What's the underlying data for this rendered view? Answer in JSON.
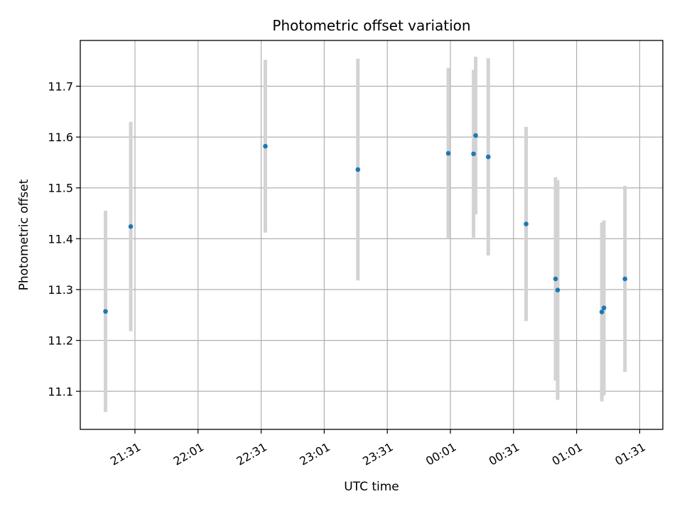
{
  "chart_data": {
    "type": "scatter",
    "title": "Photometric offset variation",
    "xlabel": "UTC time",
    "ylabel": "Photometric offset",
    "x_type": "time",
    "xlim": [
      "21:05",
      "01:42"
    ],
    "ylim": [
      11.025,
      11.79
    ],
    "grid": true,
    "x_ticks": [
      "21:31",
      "22:01",
      "22:31",
      "23:01",
      "23:31",
      "00:01",
      "00:31",
      "01:01",
      "01:31"
    ],
    "y_ticks": [
      "11.1",
      "11.2",
      "11.3",
      "11.4",
      "11.5",
      "11.6",
      "11.7"
    ],
    "point_color": "#1f77b4",
    "errorbar_color": "#d3d3d3",
    "points": [
      {
        "x": "21:17",
        "y": 11.257,
        "err": 0.198
      },
      {
        "x": "21:29",
        "y": 11.424,
        "err": 0.206
      },
      {
        "x": "22:33",
        "y": 11.582,
        "err": 0.17
      },
      {
        "x": "23:17",
        "y": 11.536,
        "err": 0.218
      },
      {
        "x": "00:00",
        "y": 11.568,
        "err": 0.168
      },
      {
        "x": "00:12",
        "y": 11.567,
        "err": 0.165
      },
      {
        "x": "00:13",
        "y": 11.603,
        "err": 0.155
      },
      {
        "x": "00:19",
        "y": 11.561,
        "err": 0.194
      },
      {
        "x": "00:37",
        "y": 11.429,
        "err": 0.191
      },
      {
        "x": "00:51",
        "y": 11.321,
        "err": 0.2
      },
      {
        "x": "00:52",
        "y": 11.299,
        "err": 0.216
      },
      {
        "x": "01:13",
        "y": 11.256,
        "err": 0.176
      },
      {
        "x": "01:14",
        "y": 11.264,
        "err": 0.172
      },
      {
        "x": "01:24",
        "y": 11.321,
        "err": 0.183
      }
    ]
  }
}
